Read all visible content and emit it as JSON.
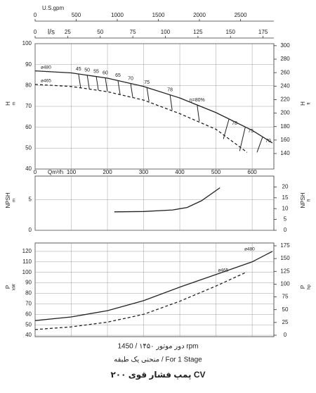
{
  "chart_data": [
    {
      "type": "line",
      "ylabel": "H",
      "yunit": "m",
      "y2label": "H",
      "y2unit": "ft",
      "xlabel": "Qm³/h",
      "xlim": [
        0,
        660
      ],
      "xticks": [
        0,
        100,
        200,
        300,
        400,
        500,
        600
      ],
      "ylim": [
        40,
        100
      ],
      "yticks": [
        40,
        50,
        60,
        70,
        80,
        90,
        100
      ],
      "y2lim": [
        117,
        303
      ],
      "y2ticks": [
        140,
        160,
        180,
        200,
        220,
        240,
        260,
        280,
        300
      ],
      "top_axes": [
        {
          "label": "U.S.gpm",
          "lim": [
            0,
            2906
          ],
          "ticks": [
            0,
            500,
            1000,
            1500,
            2000,
            2500
          ]
        },
        {
          "label": "l/s",
          "lim": [
            0,
            183.3
          ],
          "ticks": [
            0,
            25,
            50,
            75,
            100,
            125,
            150,
            175
          ]
        }
      ],
      "grid": true,
      "series": [
        {
          "name": "ø480",
          "color": "#222",
          "dashed": false,
          "x": [
            0,
            100,
            200,
            300,
            400,
            500,
            600,
            656
          ],
          "values": [
            87,
            86,
            83.5,
            79.5,
            74,
            67,
            58.5,
            52.5
          ]
        },
        {
          "name": "ø465",
          "color": "#222",
          "dashed": true,
          "x": [
            0,
            100,
            200,
            300,
            400,
            500,
            586
          ],
          "values": [
            80.5,
            79.5,
            77,
            73,
            66.5,
            59,
            48
          ]
        }
      ],
      "efficiency": {
        "x": [
          120,
          144,
          169,
          194,
          229,
          264,
          309,
          373,
          448,
          536,
          581,
          629
        ],
        "values": [
          45,
          50,
          55,
          60,
          65,
          70,
          75,
          78,
          80,
          78,
          75,
          70
        ],
        "value_labels": [
          "45",
          "50",
          "55",
          "60",
          "65",
          "70",
          "75",
          "78",
          "η=80%",
          "78",
          "75",
          "70"
        ]
      }
    },
    {
      "type": "line",
      "ylabel": "NPSH",
      "yunit": "m",
      "y2label": "NPSH",
      "y2unit": "ft",
      "xlim": [
        0,
        660
      ],
      "xticks": [
        0,
        100,
        200,
        300,
        400,
        500,
        600
      ],
      "ylim": [
        0,
        8.8
      ],
      "yticks": [
        0,
        5
      ],
      "y2lim": [
        0,
        25
      ],
      "y2ticks": [
        0,
        5,
        10,
        15,
        20
      ],
      "grid": true,
      "series": [
        {
          "name": "NPSH",
          "color": "#222",
          "dashed": false,
          "hide_name": true,
          "x": [
            219,
            300,
            380,
            420,
            460,
            511
          ],
          "values": [
            3.0,
            3.05,
            3.3,
            3.7,
            4.8,
            6.9
          ]
        }
      ]
    },
    {
      "type": "line",
      "ylabel": "P",
      "yunit": "kW",
      "y2label": "P",
      "y2unit": "hp",
      "xlim": [
        0,
        660
      ],
      "xticks": [
        0,
        100,
        200,
        300,
        400,
        500,
        600
      ],
      "ylim": [
        38.7,
        128
      ],
      "yticks": [
        40,
        50,
        60,
        70,
        80,
        90,
        100,
        110,
        120
      ],
      "y2lim": [
        -2.8,
        180.5
      ],
      "y2ticks": [
        0,
        25,
        50,
        75,
        100,
        125,
        150,
        175
      ],
      "grid": true,
      "names_at_end": true,
      "series": [
        {
          "name": "ø480",
          "color": "#222",
          "dashed": false,
          "x": [
            0,
            100,
            200,
            300,
            400,
            500,
            600,
            656
          ],
          "values": [
            54,
            57.5,
            63.5,
            73,
            86,
            98,
            110,
            120
          ]
        },
        {
          "name": "ø465",
          "color": "#222",
          "dashed": true,
          "x": [
            0,
            100,
            200,
            300,
            400,
            500,
            583
          ],
          "values": [
            45.5,
            48,
            52.5,
            60,
            72.5,
            87,
            100
          ]
        }
      ]
    }
  ],
  "captions": [
    "دور موتور ۱۴۵۰ / 1450 rpm",
    "منحنی یک طبقه / For 1 Stage",
    "پمپ فشار قوی ۲۰۰ CV"
  ]
}
